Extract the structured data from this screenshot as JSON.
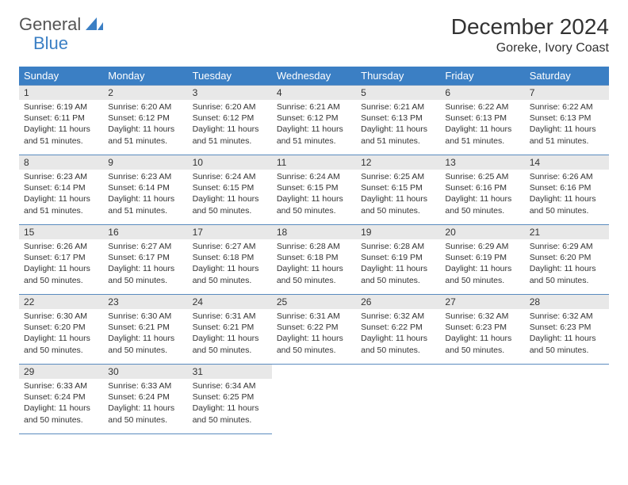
{
  "brand": {
    "part1": "General",
    "part2": "Blue"
  },
  "title": "December 2024",
  "location": "Goreke, Ivory Coast",
  "colors": {
    "header_bg": "#3b7fc4",
    "header_text": "#ffffff",
    "daynum_bg": "#e8e8e8",
    "row_border": "#5a8bbf",
    "text": "#333333",
    "background": "#ffffff"
  },
  "typography": {
    "title_fontsize": 28,
    "location_fontsize": 16,
    "dayheader_fontsize": 13,
    "daynum_fontsize": 12,
    "cell_fontsize": 10.5
  },
  "day_headers": [
    "Sunday",
    "Monday",
    "Tuesday",
    "Wednesday",
    "Thursday",
    "Friday",
    "Saturday"
  ],
  "days": [
    {
      "num": "1",
      "sunrise": "6:19 AM",
      "sunset": "6:11 PM",
      "daylight": "11 hours and 51 minutes."
    },
    {
      "num": "2",
      "sunrise": "6:20 AM",
      "sunset": "6:12 PM",
      "daylight": "11 hours and 51 minutes."
    },
    {
      "num": "3",
      "sunrise": "6:20 AM",
      "sunset": "6:12 PM",
      "daylight": "11 hours and 51 minutes."
    },
    {
      "num": "4",
      "sunrise": "6:21 AM",
      "sunset": "6:12 PM",
      "daylight": "11 hours and 51 minutes."
    },
    {
      "num": "5",
      "sunrise": "6:21 AM",
      "sunset": "6:13 PM",
      "daylight": "11 hours and 51 minutes."
    },
    {
      "num": "6",
      "sunrise": "6:22 AM",
      "sunset": "6:13 PM",
      "daylight": "11 hours and 51 minutes."
    },
    {
      "num": "7",
      "sunrise": "6:22 AM",
      "sunset": "6:13 PM",
      "daylight": "11 hours and 51 minutes."
    },
    {
      "num": "8",
      "sunrise": "6:23 AM",
      "sunset": "6:14 PM",
      "daylight": "11 hours and 51 minutes."
    },
    {
      "num": "9",
      "sunrise": "6:23 AM",
      "sunset": "6:14 PM",
      "daylight": "11 hours and 51 minutes."
    },
    {
      "num": "10",
      "sunrise": "6:24 AM",
      "sunset": "6:15 PM",
      "daylight": "11 hours and 50 minutes."
    },
    {
      "num": "11",
      "sunrise": "6:24 AM",
      "sunset": "6:15 PM",
      "daylight": "11 hours and 50 minutes."
    },
    {
      "num": "12",
      "sunrise": "6:25 AM",
      "sunset": "6:15 PM",
      "daylight": "11 hours and 50 minutes."
    },
    {
      "num": "13",
      "sunrise": "6:25 AM",
      "sunset": "6:16 PM",
      "daylight": "11 hours and 50 minutes."
    },
    {
      "num": "14",
      "sunrise": "6:26 AM",
      "sunset": "6:16 PM",
      "daylight": "11 hours and 50 minutes."
    },
    {
      "num": "15",
      "sunrise": "6:26 AM",
      "sunset": "6:17 PM",
      "daylight": "11 hours and 50 minutes."
    },
    {
      "num": "16",
      "sunrise": "6:27 AM",
      "sunset": "6:17 PM",
      "daylight": "11 hours and 50 minutes."
    },
    {
      "num": "17",
      "sunrise": "6:27 AM",
      "sunset": "6:18 PM",
      "daylight": "11 hours and 50 minutes."
    },
    {
      "num": "18",
      "sunrise": "6:28 AM",
      "sunset": "6:18 PM",
      "daylight": "11 hours and 50 minutes."
    },
    {
      "num": "19",
      "sunrise": "6:28 AM",
      "sunset": "6:19 PM",
      "daylight": "11 hours and 50 minutes."
    },
    {
      "num": "20",
      "sunrise": "6:29 AM",
      "sunset": "6:19 PM",
      "daylight": "11 hours and 50 minutes."
    },
    {
      "num": "21",
      "sunrise": "6:29 AM",
      "sunset": "6:20 PM",
      "daylight": "11 hours and 50 minutes."
    },
    {
      "num": "22",
      "sunrise": "6:30 AM",
      "sunset": "6:20 PM",
      "daylight": "11 hours and 50 minutes."
    },
    {
      "num": "23",
      "sunrise": "6:30 AM",
      "sunset": "6:21 PM",
      "daylight": "11 hours and 50 minutes."
    },
    {
      "num": "24",
      "sunrise": "6:31 AM",
      "sunset": "6:21 PM",
      "daylight": "11 hours and 50 minutes."
    },
    {
      "num": "25",
      "sunrise": "6:31 AM",
      "sunset": "6:22 PM",
      "daylight": "11 hours and 50 minutes."
    },
    {
      "num": "26",
      "sunrise": "6:32 AM",
      "sunset": "6:22 PM",
      "daylight": "11 hours and 50 minutes."
    },
    {
      "num": "27",
      "sunrise": "6:32 AM",
      "sunset": "6:23 PM",
      "daylight": "11 hours and 50 minutes."
    },
    {
      "num": "28",
      "sunrise": "6:32 AM",
      "sunset": "6:23 PM",
      "daylight": "11 hours and 50 minutes."
    },
    {
      "num": "29",
      "sunrise": "6:33 AM",
      "sunset": "6:24 PM",
      "daylight": "11 hours and 50 minutes."
    },
    {
      "num": "30",
      "sunrise": "6:33 AM",
      "sunset": "6:24 PM",
      "daylight": "11 hours and 50 minutes."
    },
    {
      "num": "31",
      "sunrise": "6:34 AM",
      "sunset": "6:25 PM",
      "daylight": "11 hours and 50 minutes."
    }
  ],
  "labels": {
    "sunrise": "Sunrise:",
    "sunset": "Sunset:",
    "daylight": "Daylight:"
  }
}
